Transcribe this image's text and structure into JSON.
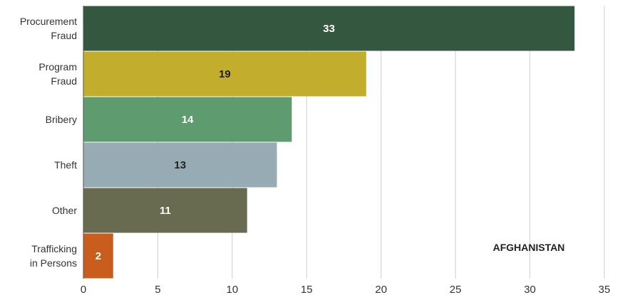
{
  "chart_data": {
    "type": "bar",
    "orientation": "horizontal",
    "categories": [
      [
        "Procurement",
        "Fraud"
      ],
      [
        "Program",
        "Fraud"
      ],
      [
        "Bribery"
      ],
      [
        "Theft"
      ],
      [
        "Other"
      ],
      [
        "Trafficking",
        "in Persons"
      ]
    ],
    "values": [
      33,
      19,
      14,
      13,
      11,
      2
    ],
    "colors": [
      "#33573f",
      "#c3ad2c",
      "#5e9b6e",
      "#96abb4",
      "#696b51",
      "#c85d1e"
    ],
    "value_label_colors": [
      "#ffffff",
      "#222222",
      "#ffffff",
      "#222222",
      "#ffffff",
      "#ffffff"
    ],
    "xlim": [
      0,
      35
    ],
    "xticks": [
      0,
      5,
      10,
      15,
      20,
      25,
      30,
      35
    ],
    "grid": "vertical",
    "annotation": "AFGHANISTAN"
  }
}
